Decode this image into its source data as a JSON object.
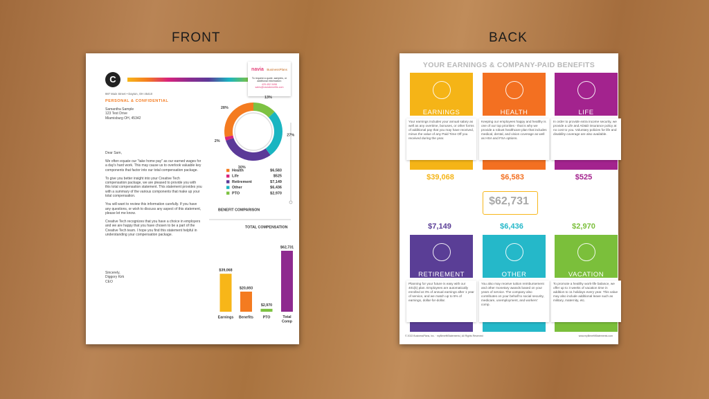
{
  "labels": {
    "front": "FRONT",
    "back": "BACK"
  },
  "front": {
    "logo": "C",
    "address": "987 Main Street • Dayton, OH 45410",
    "confidential": "PERSONAL & CONFIDENTIAL",
    "recipient": [
      "Samantha Sample",
      "123 Test Drive",
      "Miamisburg OH, 45342"
    ],
    "navia": {
      "brand": "navia",
      "partner": "BusinessPlans",
      "text": "To request a quote, samples, or additional information:",
      "phone": "425.452.3498",
      "email": "sales@naviabenefits.com"
    },
    "letter": [
      "Dear Sam,",
      "We often equate our \"take home pay\" as our earned wages for a day's hard work. This may cause us to overlook valuable key components that factor into our total compensation package.",
      "To give you better insight into your Creative Tech compensation package, we are pleased to provide you with this total compensation statement. This statement provides you with a summary of the various components that make up your total compensation.",
      "You will want to review this information carefully. If you have any questions, or wish to discuss any aspect of this statement, please let me know.",
      "Creative Tech recognizes that you have a choice in employers and we are happy that you have chosen to be a part of the Creative Tech team. I hope you find this statement helpful in understanding your compensation package."
    ],
    "signoff": [
      "Sincerely,",
      "Diggory Kirk",
      "CEO"
    ],
    "benefit_comparison": "BENEFIT COMPARISON"
  },
  "chart_data": [
    {
      "type": "pie",
      "categories": [
        "Health",
        "Life",
        "Retirement",
        "Other",
        "PTO"
      ],
      "values": [
        28,
        2,
        30,
        27,
        13
      ],
      "value_labels": [
        "28%",
        "2%",
        "30%",
        "27%",
        "13%"
      ],
      "colors": [
        "#f47b20",
        "#d8237b",
        "#5b3a98",
        "#1ab5c1",
        "#7dc242"
      ],
      "legend_values": [
        "$6,583",
        "$525",
        "$7,149",
        "$6,436",
        "$2,970"
      ]
    },
    {
      "type": "bar",
      "title": "TOTAL COMPENSATION",
      "categories": [
        "Earnings",
        "Benefits",
        "PTO",
        "Total Comp"
      ],
      "values": [
        39068,
        20693,
        2970,
        62731
      ],
      "value_labels": [
        "$39,068",
        "$20,693",
        "$2,970",
        "$62,731"
      ],
      "colors": [
        "#f7b619",
        "#f47b20",
        "#7dc242",
        "#8e2a8f"
      ]
    }
  ],
  "back": {
    "title": "YOUR EARNINGS & COMPANY-PAID BENEFITS",
    "total": "$62,731",
    "cards": [
      {
        "name": "EARNINGS",
        "color": "#f5b417",
        "amount": "$39,068",
        "text": "Your earnings includes your annual salary as well as any overtime, bonuses, or other forms of additional pay that you may have received, minus the value of any Paid Time Off you received during the year."
      },
      {
        "name": "HEALTH",
        "color": "#f37021",
        "amount": "$6,583",
        "text": "Keeping our employees happy and healthy is one of our top priorities - that is why we provide a robust healthcare plan that includes medical, dental, and vision coverage as well as HSA and FSA options."
      },
      {
        "name": "LIFE",
        "color": "#a3238e",
        "amount": "$525",
        "text": "In order to provide extra income security, we provide a Life and AD&D insurance policy at no cost to you. Voluntary policies for life and disability coverage are also available."
      },
      {
        "name": "RETIREMENT",
        "color": "#5a3e96",
        "amount": "$7,149",
        "text": "Planning for your future is easy with our 401(k) plan. Employees are automatically enrolled at 3% of annual earnings after 1 year of service, and we match up to 5% of earnings, dollar-for-dollar."
      },
      {
        "name": "OTHER",
        "color": "#25b8c9",
        "amount": "$6,436",
        "text": "You also may receive tuition reimbursement and other monetary awards based on your years of service. The company also contributes on your behalf to social security, medicare, unemployment, and workers' comp."
      },
      {
        "name": "VACATION",
        "color": "#7bbf3b",
        "amount": "$2,970",
        "text": "To promote a healthy work-life balance, we offer up to 3 weeks of vacation time in addition to 11 holidays every year. This value may also include additional leave such as military, maternity, etc."
      }
    ],
    "footer_left": "© 2022 BusinessPlans, Inc. · myBenefitStatements | All Rights Reserved",
    "footer_right": "www.myBenefitStatements.com"
  }
}
